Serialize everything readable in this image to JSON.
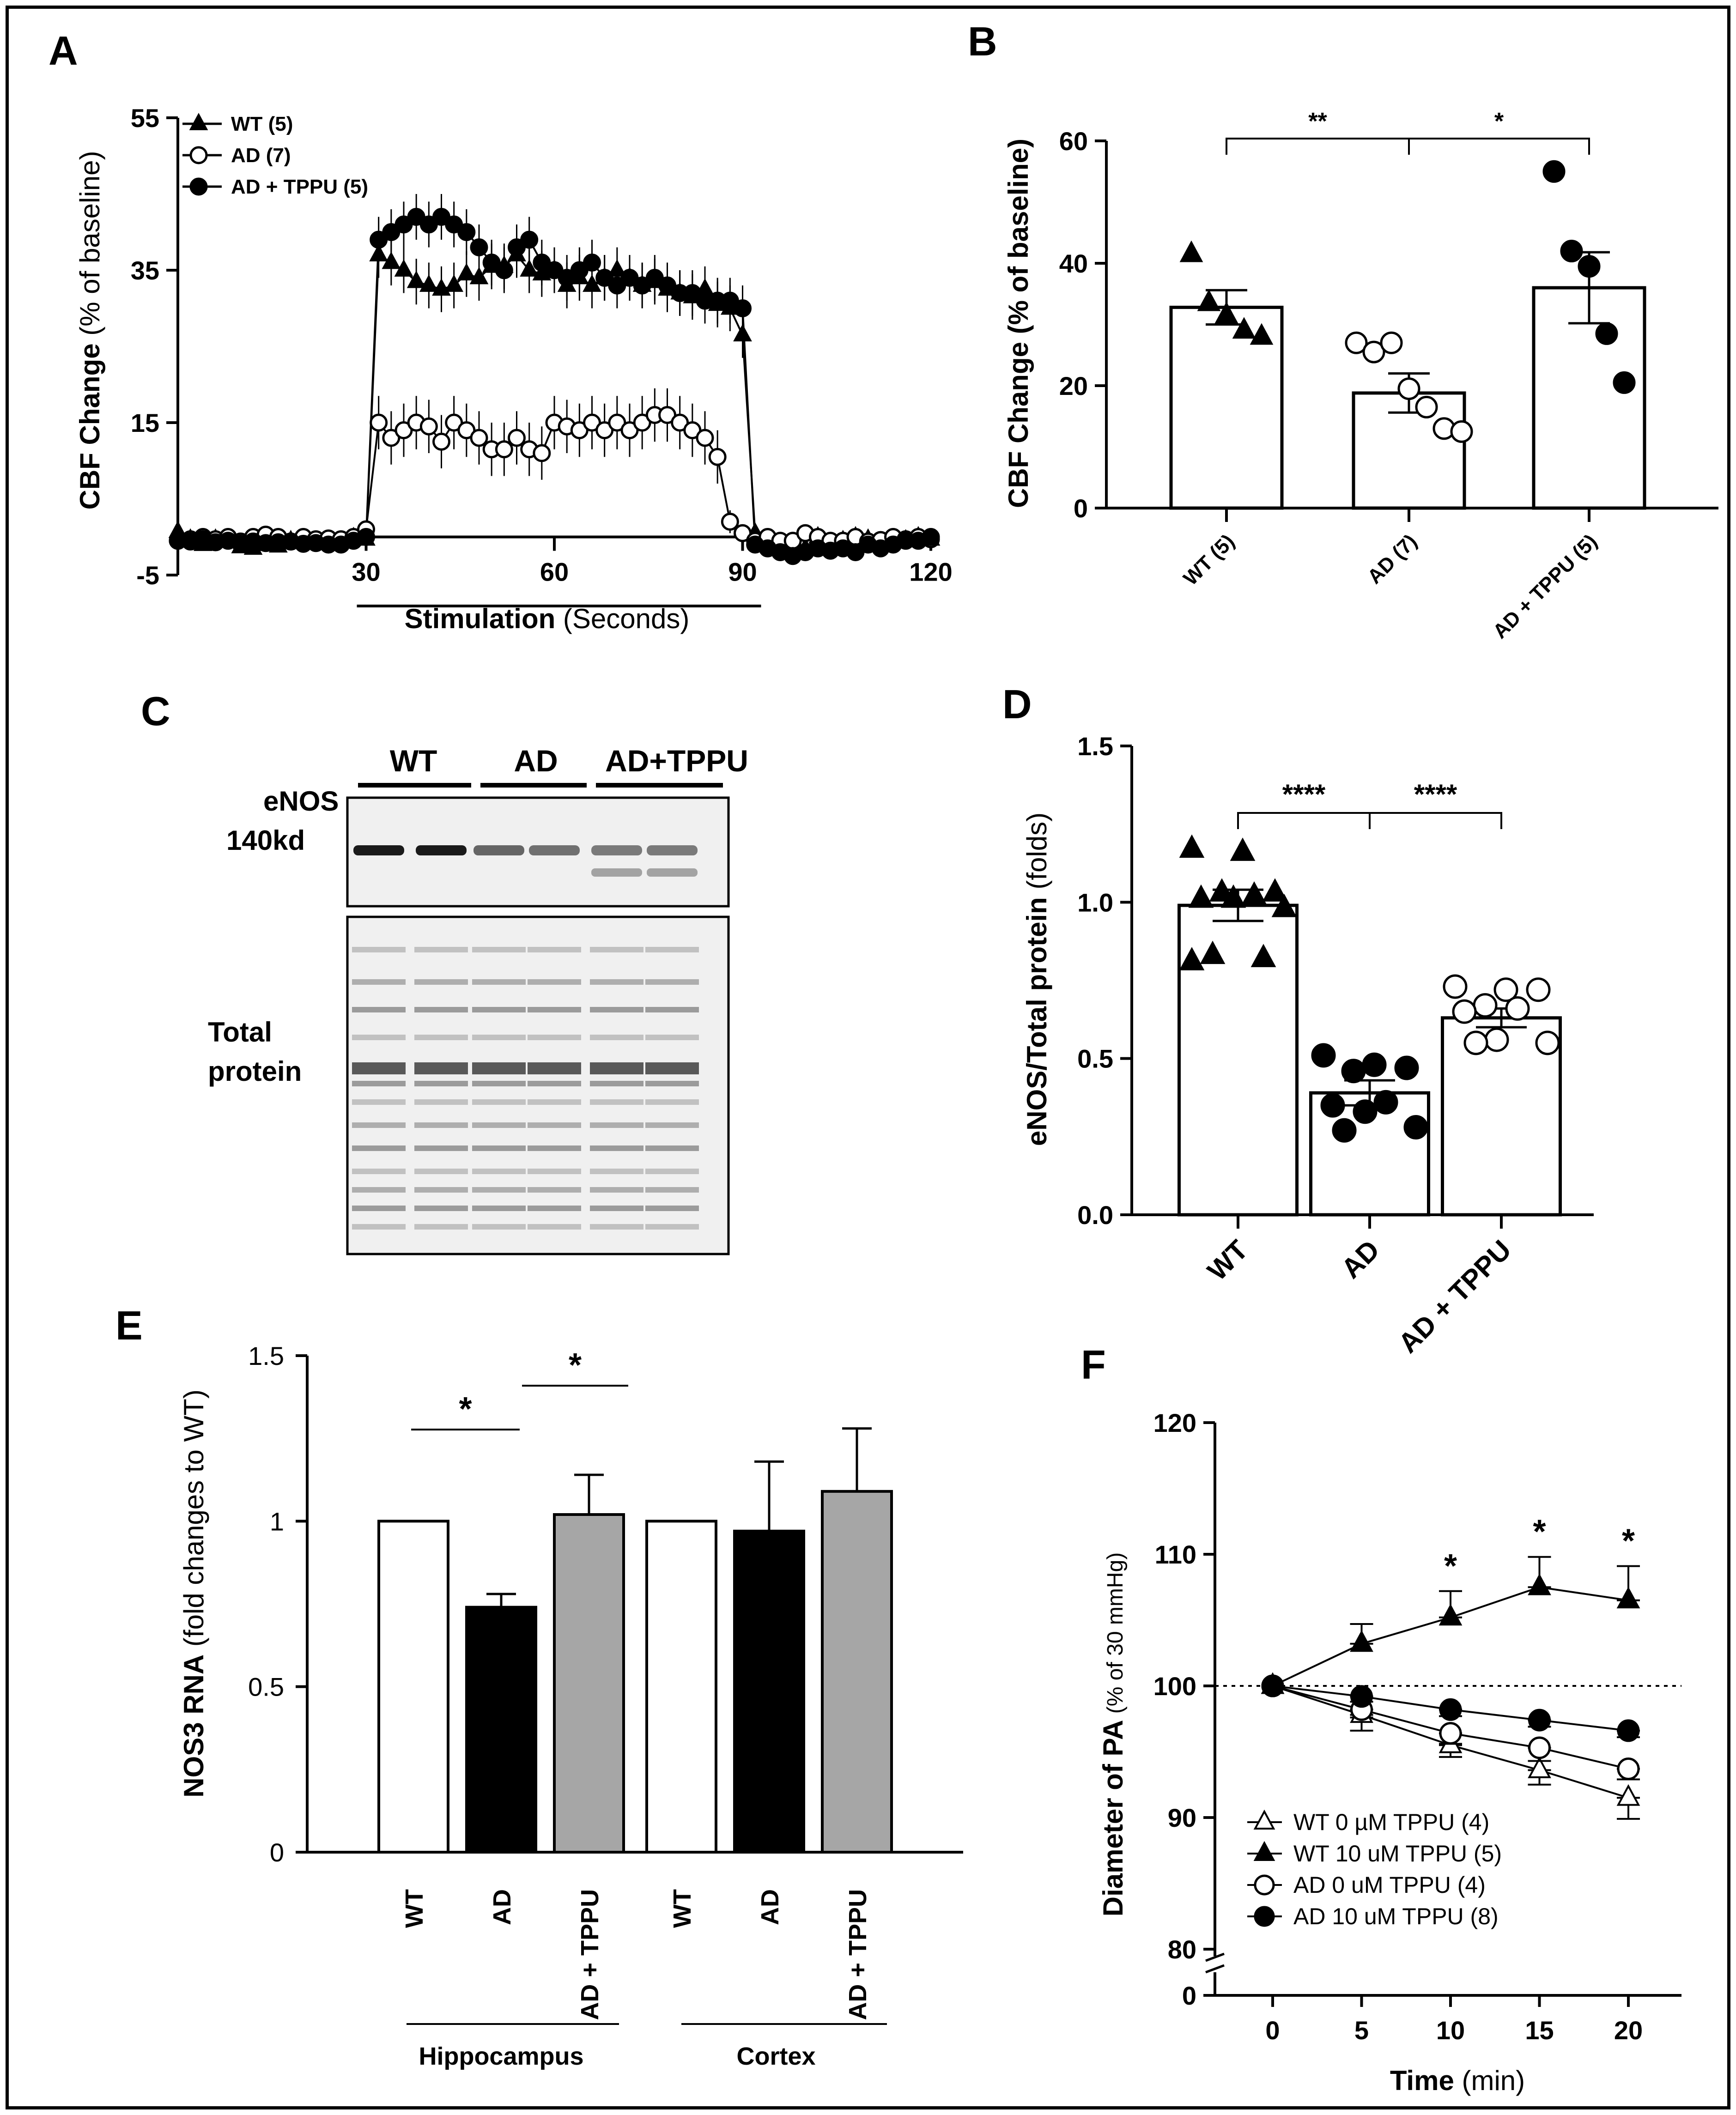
{
  "panels": {
    "a": {
      "label": "A",
      "ylabel_bold": "CBF Change",
      "ylabel_rest": " (% of baseline)",
      "xlabel_bold": "Stimulation",
      "xlabel_rest": " (Seconds)"
    },
    "b": {
      "label": "B"
    },
    "c": {
      "label": "C",
      "groups": [
        "WT",
        "AD",
        "AD+TPPU"
      ],
      "band_label_1": "eNOS",
      "band_label_2": "140kd",
      "total_label_1": "Total",
      "total_label_2": "protein"
    },
    "d": {
      "label": "D"
    },
    "e": {
      "label": "E",
      "ylabel_bold": "NOS3 RNA",
      "ylabel_rest": " (fold changes to WT)",
      "region1": "Hippocampus",
      "region2": "Cortex"
    },
    "f": {
      "label": "F",
      "ylabel_bold": "Diameter of PA",
      "ylabel_rest": " (% of 30 mmHg)",
      "xlabel_bold": "Time",
      "xlabel_rest": " (min)"
    }
  },
  "colors": {
    "black": "#000000",
    "white": "#ffffff",
    "gray": "#a6a6a6",
    "blot_bg": "#f0f0f0"
  },
  "chart_data": [
    {
      "id": "A",
      "type": "line",
      "title": "",
      "xlabel": "Stimulation (Seconds)",
      "ylabel": "CBF Change (% of baseline)",
      "xlim": [
        0,
        120
      ],
      "ylim": [
        -5,
        55
      ],
      "xticks": [
        30,
        60,
        90,
        120
      ],
      "yticks": [
        -5,
        15,
        35,
        55
      ],
      "legend": [
        "WT (5)",
        "AD (7)",
        "AD + TPPU (5)"
      ],
      "stimulation_window": [
        30,
        90
      ],
      "x": [
        0,
        2,
        4,
        6,
        8,
        10,
        12,
        14,
        16,
        18,
        20,
        22,
        24,
        26,
        28,
        30,
        32,
        34,
        36,
        38,
        40,
        42,
        44,
        46,
        48,
        50,
        52,
        54,
        56,
        58,
        60,
        62,
        64,
        66,
        68,
        70,
        72,
        74,
        76,
        78,
        80,
        82,
        84,
        86,
        88,
        90,
        92,
        94,
        96,
        98,
        100,
        102,
        104,
        106,
        108,
        110,
        112,
        114,
        116,
        118,
        120
      ],
      "series": [
        {
          "name": "WT (5)",
          "marker": "triangle",
          "values": [
            0.7,
            -0.3,
            -1.0,
            -0.3,
            -0.3,
            -1.3,
            -1.5,
            -1.0,
            -1.2,
            -0.5,
            -0.3,
            -0.8,
            -0.6,
            -0.6,
            -0.1,
            -0.3,
            37.0,
            36.0,
            35.0,
            33.5,
            33.0,
            32.5,
            33.0,
            34.5,
            34.0,
            35.5,
            35.5,
            37.0,
            35.0,
            34.5,
            35.0,
            33.0,
            34.0,
            33.0,
            34.0,
            35.0,
            34.0,
            33.0,
            33.5,
            32.5,
            32.0,
            31.5,
            32.5,
            30.5,
            30.0,
            26.5,
            0.5,
            -0.5,
            -1.5,
            -1.0,
            -1.5,
            0.0,
            -1.2,
            -0.5,
            0.0,
            -0.3,
            -1.0,
            -0.5,
            -0.4,
            0.0,
            -0.3
          ],
          "err": [
            0.8,
            0.8,
            0.8,
            0.8,
            0.8,
            0.8,
            0.8,
            0.8,
            0.8,
            0.8,
            0.8,
            0.8,
            0.8,
            0.8,
            0.8,
            0.8,
            3,
            3,
            3,
            3,
            3,
            3,
            3,
            3,
            3,
            3,
            3,
            3,
            3,
            3,
            3,
            3,
            3,
            3,
            3,
            3,
            3,
            3,
            3,
            3,
            3,
            3,
            3,
            3,
            3,
            3,
            1,
            1,
            1,
            1,
            1,
            1,
            1,
            1,
            1,
            1,
            1,
            1,
            1,
            1,
            1
          ]
        },
        {
          "name": "AD (7)",
          "marker": "open-circle",
          "values": [
            -0.5,
            -0.3,
            0.0,
            -0.3,
            0.0,
            -0.6,
            0.0,
            0.3,
            0.0,
            -0.6,
            0.0,
            -0.3,
            -0.2,
            -0.3,
            0.0,
            1.0,
            15.0,
            13.0,
            14.0,
            15.0,
            14.5,
            12.5,
            15.0,
            14.0,
            13.0,
            11.5,
            11.5,
            13.0,
            11.5,
            11.0,
            15.0,
            14.5,
            14.0,
            15.0,
            14.0,
            15.0,
            14.0,
            15.0,
            16.0,
            16.0,
            15.0,
            14.0,
            13.0,
            10.5,
            2.0,
            0.5,
            -0.5,
            0.0,
            -0.5,
            -0.5,
            0.5,
            0.0,
            -0.5,
            -0.5,
            0.0,
            -0.6,
            -0.4,
            0.0,
            -0.3,
            0.0,
            -0.3
          ],
          "err": [
            0.8,
            0.8,
            0.8,
            0.8,
            0.8,
            0.8,
            0.8,
            0.8,
            0.8,
            0.8,
            0.8,
            0.8,
            0.8,
            0.8,
            0.8,
            0.8,
            3.5,
            3.5,
            3.5,
            3.5,
            3.5,
            3.5,
            3.5,
            3.5,
            3.5,
            3.5,
            3.5,
            3.5,
            3.5,
            3.5,
            3.5,
            3.5,
            3.5,
            3.5,
            3.5,
            3.5,
            3.5,
            3.5,
            3.5,
            3.5,
            3.5,
            3.5,
            3.5,
            3.5,
            1.5,
            1,
            1,
            1,
            1,
            1,
            1,
            1,
            1,
            1,
            1,
            1,
            1,
            1,
            1,
            1,
            1
          ]
        },
        {
          "name": "AD + TPPU (5)",
          "marker": "filled-circle",
          "values": [
            -0.5,
            -0.6,
            -0.3,
            -0.7,
            -0.5,
            -0.9,
            -0.6,
            -0.8,
            -0.7,
            -0.6,
            -0.9,
            -0.8,
            -1.0,
            -1.0,
            -0.5,
            0.0,
            39.0,
            40.0,
            41.0,
            42.0,
            41.0,
            42.0,
            41.0,
            40.0,
            38.0,
            36.0,
            35.0,
            38.0,
            39.0,
            36.0,
            35.0,
            34.0,
            35.0,
            36.0,
            34.0,
            33.0,
            34.0,
            33.0,
            34.0,
            33.0,
            32.0,
            32.0,
            31.0,
            31.0,
            31.0,
            30.0,
            -1.0,
            -1.5,
            -2.0,
            -2.5,
            -2.0,
            -1.5,
            -1.8,
            -1.5,
            -2.0,
            -1.0,
            -1.5,
            -1.0,
            -0.5,
            -0.5,
            0.0
          ],
          "err": [
            0.8,
            0.8,
            0.8,
            0.8,
            0.8,
            0.8,
            0.8,
            0.8,
            0.8,
            0.8,
            0.8,
            0.8,
            0.8,
            0.8,
            0.8,
            0.8,
            3,
            3,
            3,
            3,
            3,
            3,
            3,
            3,
            3,
            3,
            3,
            3,
            3,
            3,
            3,
            3,
            3,
            3,
            3,
            3,
            3,
            3,
            3,
            3,
            3,
            3,
            3,
            3,
            3,
            3,
            1,
            1,
            1,
            1,
            1,
            1,
            1,
            1,
            1,
            1,
            1,
            1,
            1,
            1,
            1
          ]
        }
      ]
    },
    {
      "id": "B",
      "type": "bar",
      "xlabel": "",
      "ylabel": "CBF Change (% of baseline)",
      "ylim": [
        0,
        60
      ],
      "yticks": [
        0,
        20,
        40,
        60
      ],
      "categories": [
        "WT (5)",
        "AD (7)",
        "AD + TPPU (5)"
      ],
      "values": [
        32.8,
        18.8,
        36.0
      ],
      "sem": [
        2.8,
        3.2,
        5.8
      ],
      "points": [
        [
          41.5,
          33.5,
          31.5,
          29.0,
          28.0
        ],
        [
          27.0,
          25.5,
          27.0,
          19.5,
          16.5,
          13.0,
          12.5
        ],
        [
          55.0,
          42.0,
          39.5,
          28.5,
          20.5
        ]
      ],
      "markers": [
        "triangle",
        "open-circle",
        "filled-circle"
      ],
      "significance": [
        {
          "from": 0,
          "to": 1,
          "label": "**"
        },
        {
          "from": 1,
          "to": 2,
          "label": "*"
        }
      ]
    },
    {
      "id": "D",
      "type": "bar",
      "xlabel": "",
      "ylabel": "eNOS/Total protein (folds)",
      "ylim": [
        0,
        1.5
      ],
      "yticks": [
        "0.0",
        "0.5",
        "1.0",
        "1.5"
      ],
      "categories": [
        "WT",
        "AD",
        "AD + TPPU"
      ],
      "values": [
        0.99,
        0.39,
        0.63
      ],
      "sem": [
        0.05,
        0.04,
        0.03
      ],
      "points": [
        [
          1.17,
          1.16,
          1.03,
          1.03,
          1.02,
          1.01,
          1.01,
          0.98,
          0.83,
          0.82,
          0.81
        ],
        [
          0.51,
          0.48,
          0.47,
          0.46,
          0.36,
          0.35,
          0.33,
          0.28,
          0.27
        ],
        [
          0.73,
          0.72,
          0.72,
          0.67,
          0.66,
          0.65,
          0.56,
          0.55,
          0.55
        ]
      ],
      "markers": [
        "triangle",
        "filled-circle",
        "open-circle"
      ],
      "significance": [
        {
          "from": 0,
          "to": 1,
          "label": "****"
        },
        {
          "from": 1,
          "to": 2,
          "label": "****"
        }
      ]
    },
    {
      "id": "E",
      "type": "bar",
      "xlabel": "",
      "ylabel": "NOS3 RNA (fold changes to WT)",
      "ylim": [
        0,
        1.5
      ],
      "yticks": [
        "0",
        "0.5",
        "1",
        "1.5"
      ],
      "categories": [
        "WT",
        "AD",
        "AD + TPPU",
        "WT",
        "AD",
        "AD + TPPU"
      ],
      "groups": [
        "Hippocampus",
        "Cortex"
      ],
      "values": [
        1.0,
        0.74,
        1.02,
        1.0,
        0.97,
        1.09
      ],
      "err": [
        0,
        0.04,
        0.12,
        0,
        0.21,
        0.19
      ],
      "fills": [
        "white",
        "black",
        "gray",
        "white",
        "black",
        "gray"
      ],
      "significance": [
        {
          "from": 0,
          "to": 1,
          "label": "*"
        },
        {
          "from": 1,
          "to": 2,
          "label": "*"
        }
      ]
    },
    {
      "id": "F",
      "type": "line",
      "xlabel": "Time (min)",
      "ylabel": "Diameter of PA (% of 30 mmHg)",
      "x": [
        0,
        5,
        10,
        15,
        20
      ],
      "xticks": [
        0,
        5,
        10,
        15,
        20
      ],
      "ylim": [
        80,
        120
      ],
      "yticks": [
        0,
        80,
        90,
        100,
        110,
        120
      ],
      "axis_break": true,
      "reference_line": 100,
      "series": [
        {
          "name": "WT 0 µM TPPU (4)",
          "marker": "open-triangle",
          "values": [
            100,
            97.8,
            95.5,
            93.6,
            91.5
          ],
          "err": [
            0,
            1.2,
            0.9,
            1.1,
            1.6
          ]
        },
        {
          "name": "WT 10 uM TPPU (5)",
          "marker": "triangle",
          "values": [
            100,
            103.2,
            105.2,
            107.5,
            106.5
          ],
          "err": [
            0,
            1.5,
            2.0,
            2.3,
            2.6
          ]
        },
        {
          "name": "AD 0 uM TPPU (4)",
          "marker": "open-circle",
          "values": [
            100,
            98.2,
            96.4,
            95.3,
            93.7
          ],
          "err": [
            0,
            0.6,
            0.8,
            1.0,
            0.8
          ]
        },
        {
          "name": "AD 10 uM TPPU (8)",
          "marker": "filled-circle",
          "values": [
            100,
            99.2,
            98.2,
            97.4,
            96.6
          ],
          "err": [
            0,
            0.4,
            0.5,
            0.5,
            0.5
          ]
        }
      ],
      "significance_x": [
        10,
        15,
        20
      ],
      "significance_label": "*"
    }
  ]
}
